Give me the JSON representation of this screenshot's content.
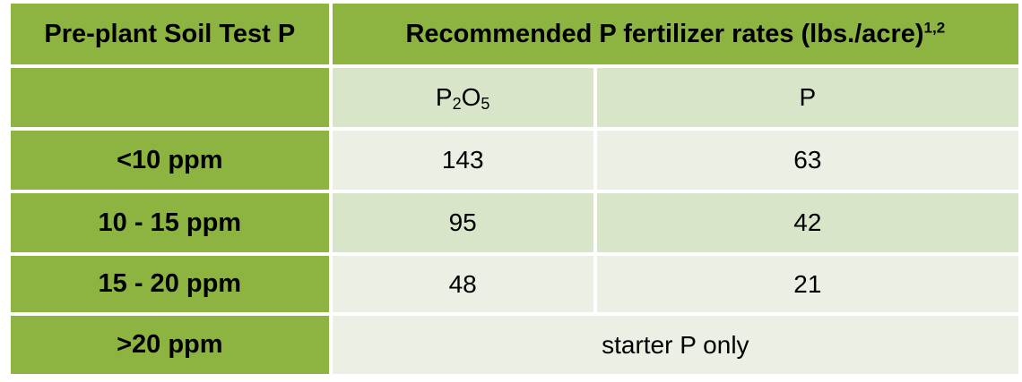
{
  "table": {
    "header": {
      "col1": "Pre-plant Soil Test P",
      "col2": "Recommended P fertilizer rates (lbs./acre)",
      "col2_sup": "1,2"
    },
    "subheader": {
      "p2o5_main": "P",
      "p2o5_sub1": "2",
      "p2o5_mid": "O",
      "p2o5_sub2": "5",
      "p": "P"
    },
    "rows": [
      {
        "label": "<10 ppm",
        "p2o5": "143",
        "p": "63"
      },
      {
        "label": "10 - 15 ppm",
        "p2o5": "95",
        "p": "42"
      },
      {
        "label": "15 - 20 ppm",
        "p2o5": "48",
        "p": "21"
      },
      {
        "label": ">20 ppm",
        "merged": "starter P only"
      }
    ]
  },
  "colors": {
    "green": "#8db440",
    "light1": "#d9e5c8",
    "light2": "#ebf0e4"
  }
}
